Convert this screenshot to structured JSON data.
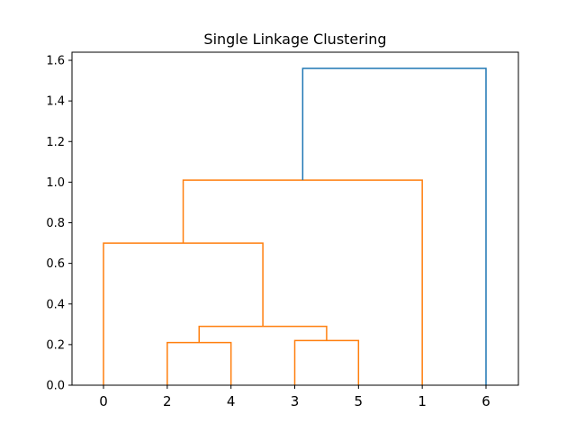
{
  "chart_data": {
    "type": "dendrogram",
    "title": "Single Linkage Clustering",
    "xlabel": "",
    "ylabel": "",
    "leaf_order": [
      "0",
      "2",
      "4",
      "3",
      "5",
      "1",
      "6"
    ],
    "ylim": [
      0,
      1.64
    ],
    "yticks": [
      "0.0",
      "0.2",
      "0.4",
      "0.6",
      "0.8",
      "1.0",
      "1.2",
      "1.4",
      "1.6"
    ],
    "merges": [
      {
        "left": [
          1
        ],
        "right": [
          2
        ],
        "height": 0.21,
        "color": "#ff7f0e"
      },
      {
        "left": [
          3
        ],
        "right": [
          4
        ],
        "height": 0.22,
        "color": "#ff7f0e"
      },
      {
        "left": [
          1,
          2
        ],
        "right": [
          3,
          4
        ],
        "height": 0.29,
        "color": "#ff7f0e"
      },
      {
        "left": [
          0
        ],
        "right": [
          1,
          2,
          3,
          4
        ],
        "height": 0.7,
        "color": "#ff7f0e"
      },
      {
        "left": [
          0,
          1,
          2,
          3,
          4
        ],
        "right": [
          5
        ],
        "height": 1.01,
        "color": "#ff7f0e"
      },
      {
        "left": [
          0,
          1,
          2,
          3,
          4,
          5
        ],
        "right": [
          6
        ],
        "height": 1.56,
        "color": "#1f77b4"
      }
    ],
    "grid": false,
    "colors": {
      "cluster": "#ff7f0e",
      "above_threshold": "#1f77b4"
    }
  }
}
